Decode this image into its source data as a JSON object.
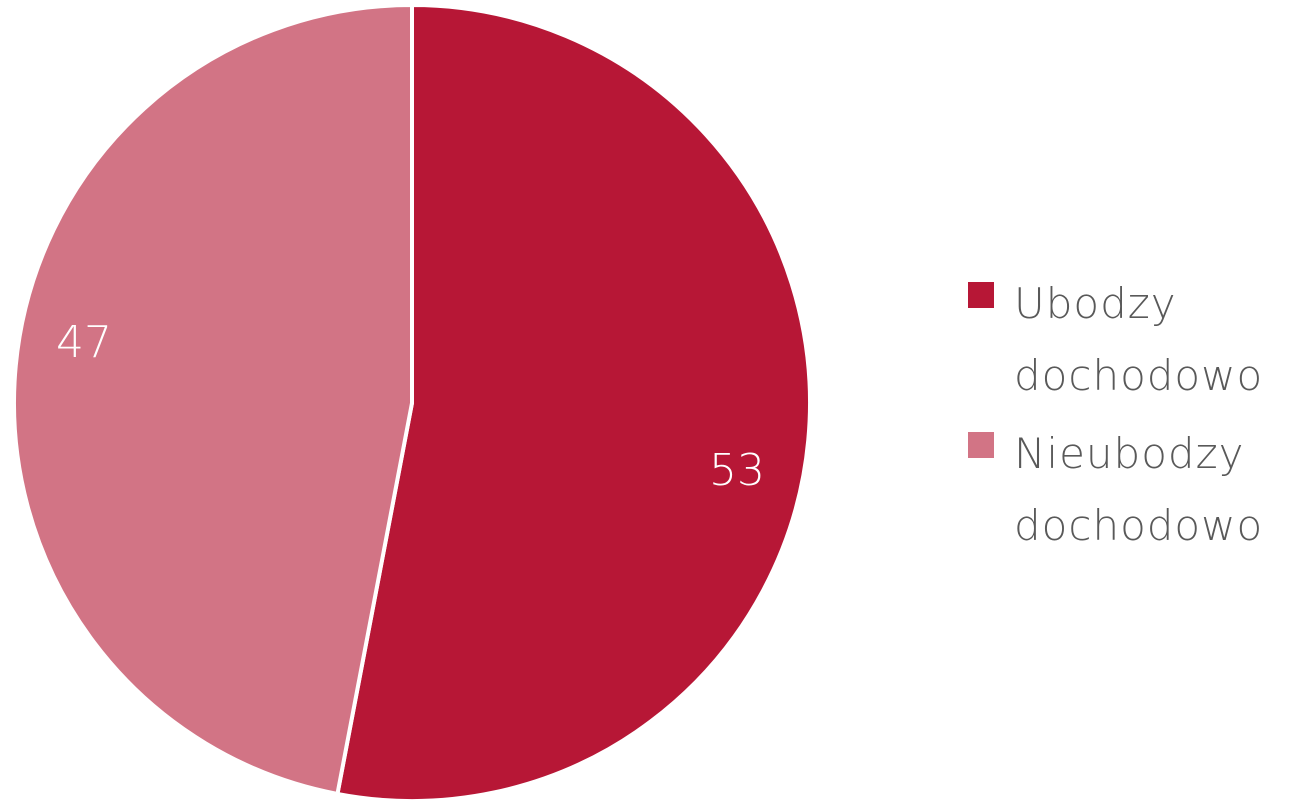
{
  "chart_data": {
    "type": "pie",
    "title": "",
    "slices": [
      {
        "label": "Ubodzy dochodowo",
        "value": 53,
        "color": "#b71736"
      },
      {
        "label": "Nieubodzy dochodowo",
        "value": 47,
        "color": "#d27485"
      }
    ],
    "data_label_color": "#ffffff",
    "legend_placement": "right"
  }
}
